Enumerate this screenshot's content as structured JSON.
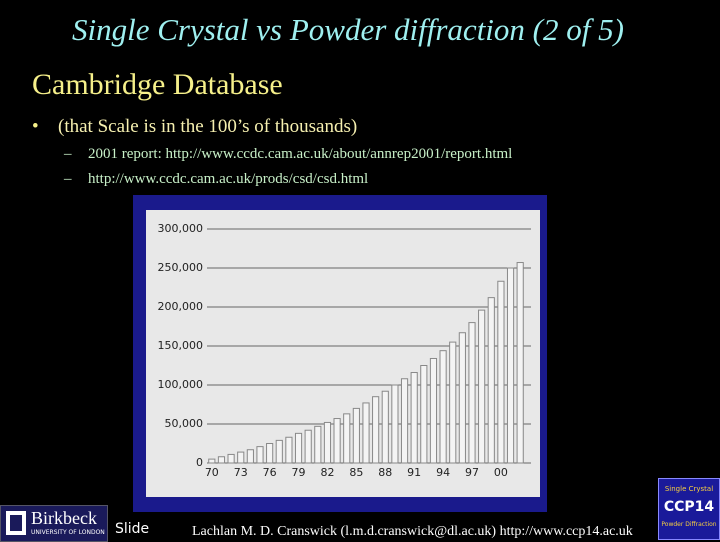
{
  "title": "Single Crystal vs Powder diffraction (2 of 5)",
  "heading": "Cambridge Database",
  "bullet": "(that Scale is in the 100’s of thousands)",
  "sub_bullets": [
    "2001 report: http://www.ccdc.cam.ac.uk/about/annrep2001/report.html",
    "http://www.ccdc.cam.ac.uk/prods/csd/csd.html"
  ],
  "chart_data": {
    "type": "bar",
    "categories": [
      "70",
      null,
      null,
      "73",
      null,
      null,
      "76",
      null,
      null,
      "79",
      null,
      null,
      "82",
      null,
      null,
      "85",
      null,
      null,
      "88",
      null,
      null,
      "91",
      null,
      null,
      "94",
      null,
      null,
      "97",
      null,
      null,
      "00",
      null,
      null
    ],
    "values": [
      5000,
      8000,
      11000,
      14000,
      17000,
      21000,
      25000,
      29000,
      33000,
      38000,
      42000,
      47000,
      52000,
      57000,
      63000,
      70000,
      77000,
      85000,
      92000,
      100000,
      108000,
      116000,
      125000,
      134000,
      144000,
      155000,
      167000,
      180000,
      196000,
      212000,
      233000,
      250000,
      257000
    ],
    "color": "#f4f4f4",
    "ylim": [
      0,
      300000
    ],
    "yticks": [
      0,
      {
        "value": 50000,
        "label": "50,000"
      },
      {
        "value": 100000,
        "label": "100,000"
      },
      {
        "value": 150000,
        "label": "150,000"
      },
      {
        "value": 200000,
        "label": "200,000"
      },
      {
        "value": 250000,
        "label": "250,000"
      },
      {
        "value": 300000,
        "label": "300,000"
      }
    ],
    "grid": true
  },
  "footer": {
    "logo_name": "Birkbeck",
    "logo_sub": "UNIVERSITY OF LONDON",
    "slide": "Slide",
    "credit": "Lachlan M. D. Cranswick (l.m.d.cranswick@dl.ac.uk) http://www.ccp14.ac.uk",
    "badge": [
      "Single Crystal",
      "CCP14",
      "Powder Diffraction"
    ]
  }
}
